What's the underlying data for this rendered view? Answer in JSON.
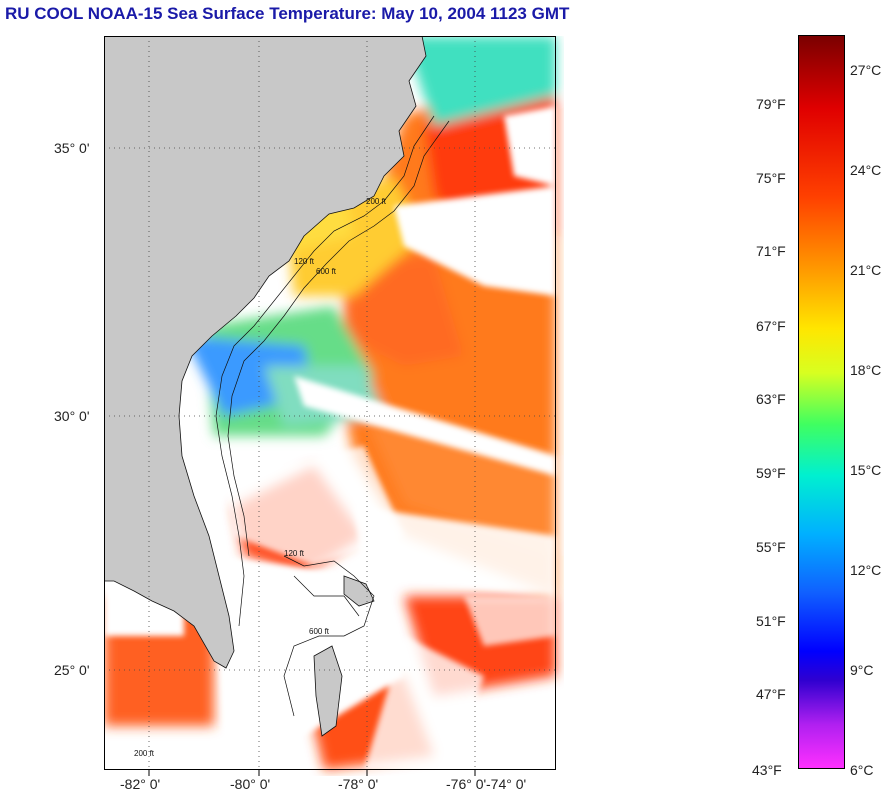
{
  "title": "RU COOL  NOAA-15  Sea Surface Temperature:  May 10, 2004 1123 GMT",
  "map": {
    "latitude_labels": [
      "35° 0'",
      "30° 0'",
      "25° 0'"
    ],
    "longitude_labels": [
      "-82° 0'",
      "-80° 0'",
      "-78° 0'",
      "-76° 0'",
      "-74° 0'"
    ],
    "contour_labels": [
      "200 ft",
      "120 ft",
      "600 ft",
      "120 ft",
      "600 ft",
      "200 ft"
    ],
    "colors": {
      "land": "#c8c8c8",
      "no_data": "#ffffff",
      "frame": "#000000"
    }
  },
  "colorbar": {
    "fahrenheit_labels": [
      "79°F",
      "75°F",
      "71°F",
      "67°F",
      "63°F",
      "59°F",
      "55°F",
      "51°F",
      "47°F",
      "43°F"
    ],
    "celsius_labels": [
      "27°C",
      "24°C",
      "21°C",
      "18°C",
      "15°C",
      "12°C",
      "9°C",
      "6°C"
    ]
  }
}
